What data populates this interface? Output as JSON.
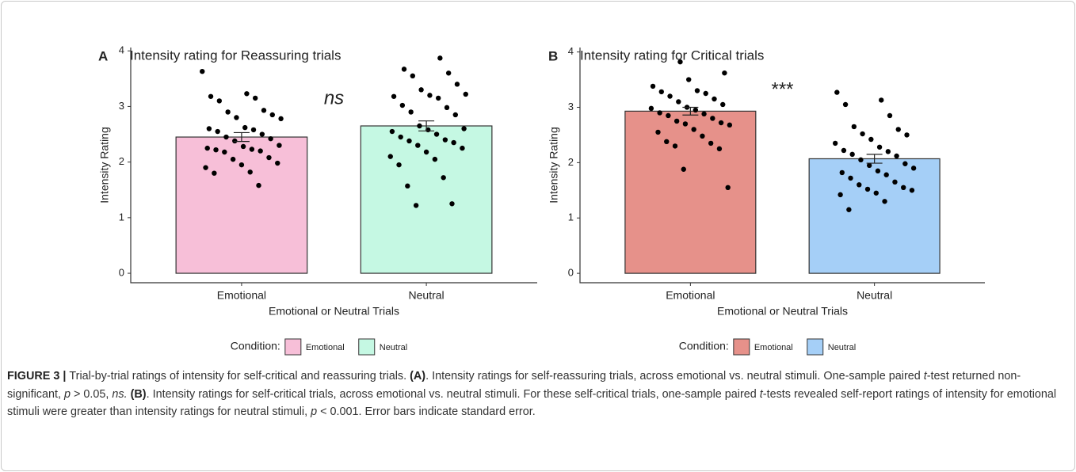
{
  "chart_data": [
    {
      "type": "bar",
      "panel": "A",
      "title": "Intensity rating for Reassuring trials",
      "categories": [
        "Emotional",
        "Neutral"
      ],
      "values": [
        2.45,
        2.65
      ],
      "errors": [
        0.08,
        0.09
      ],
      "colors": [
        "#f7bfd8",
        "#c5f8e3"
      ],
      "points": [
        [
          3.63,
          3.23,
          3.18,
          3.15,
          3.1,
          2.93,
          2.9,
          2.85,
          2.8,
          2.78,
          2.62,
          2.6,
          2.58,
          2.55,
          2.5,
          2.45,
          2.42,
          2.38,
          2.3,
          2.28,
          2.25,
          2.23,
          2.22,
          2.2,
          2.18,
          2.08,
          2.05,
          1.98,
          1.95,
          1.9,
          1.82,
          1.8,
          1.58
        ],
        [
          3.87,
          3.67,
          3.6,
          3.55,
          3.4,
          3.3,
          3.22,
          3.2,
          3.18,
          3.15,
          3.02,
          2.98,
          2.9,
          2.85,
          2.65,
          2.6,
          2.58,
          2.55,
          2.5,
          2.45,
          2.4,
          2.38,
          2.35,
          2.3,
          2.25,
          2.18,
          2.1,
          2.05,
          1.95,
          1.72,
          1.57,
          1.25,
          1.22
        ]
      ],
      "ylabel": "Intensity Rating",
      "xlabel": "Emotional or Neutral Trials",
      "legend_title": "Condition:",
      "annotation": "ns",
      "ylim": [
        -0.17,
        4.06
      ],
      "yticks": [
        0,
        1,
        2,
        3,
        4
      ]
    },
    {
      "type": "bar",
      "panel": "B",
      "title": "Intensity rating for Critical trials",
      "categories": [
        "Emotional",
        "Neutral"
      ],
      "values": [
        2.93,
        2.07
      ],
      "errors": [
        0.07,
        0.08
      ],
      "colors": [
        "#e6918a",
        "#a5cff7"
      ],
      "points": [
        [
          3.82,
          3.62,
          3.5,
          3.38,
          3.3,
          3.28,
          3.25,
          3.2,
          3.15,
          3.1,
          3.05,
          3.0,
          2.98,
          2.95,
          2.9,
          2.88,
          2.85,
          2.8,
          2.75,
          2.72,
          2.7,
          2.68,
          2.6,
          2.55,
          2.48,
          2.38,
          2.35,
          2.3,
          2.25,
          1.88,
          1.55
        ],
        [
          3.27,
          3.13,
          3.05,
          2.85,
          2.65,
          2.6,
          2.52,
          2.5,
          2.42,
          2.35,
          2.28,
          2.22,
          2.2,
          2.15,
          2.12,
          2.05,
          1.98,
          1.95,
          1.9,
          1.85,
          1.82,
          1.78,
          1.72,
          1.65,
          1.6,
          1.55,
          1.52,
          1.5,
          1.45,
          1.42,
          1.3,
          1.15
        ]
      ],
      "ylabel": "Intensity Rating",
      "xlabel": "Emotional or Neutral Trials",
      "legend_title": "Condition:",
      "annotation": "***",
      "ylim": [
        -0.17,
        4.08
      ],
      "yticks": [
        0,
        1,
        2,
        3,
        4
      ]
    }
  ],
  "caption": [
    "FIGURE 3 | ",
    "Trial-by-trial ratings of intensity for self-critical and reassuring trials. ",
    "(A)",
    ". Intensity ratings for self-reassuring trials, across emotional vs. neutral stimuli. One-sample paired ",
    "t",
    "-test returned non-significant, ",
    "p",
    " > 0.05, ",
    "ns.",
    " ",
    "(B)",
    ". Intensity ratings for self-critical trials, across emotional vs. neutral stimuli. For these self-critical trials, one-sample paired ",
    "t",
    "-tests revealed self-report ratings of intensity for emotional stimuli were greater than intensity ratings for neutral stimuli, ",
    "p",
    " < 0.001. Error bars indicate standard error."
  ]
}
